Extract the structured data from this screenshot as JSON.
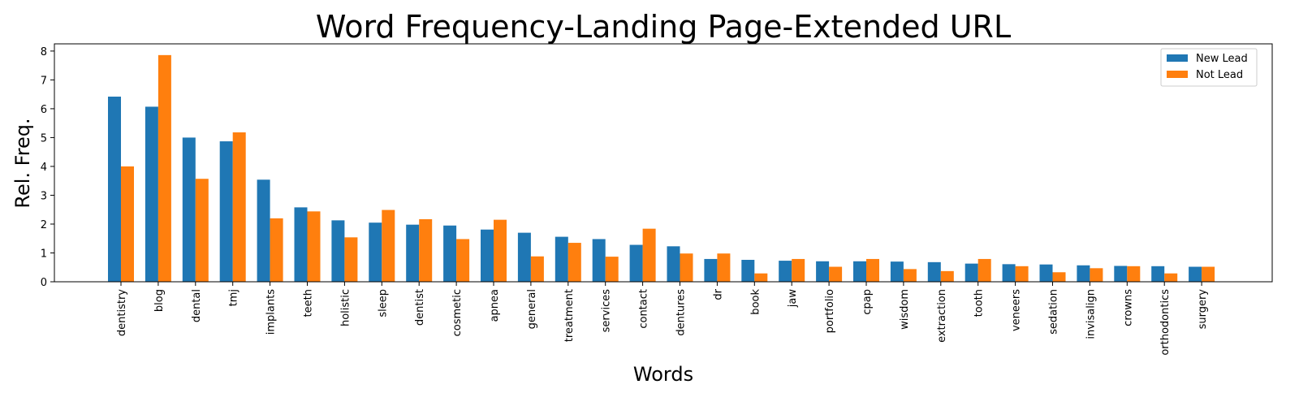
{
  "chart_data": {
    "type": "bar",
    "title": "Word Frequency-Landing Page-Extended URL",
    "xlabel": "Words",
    "ylabel": "Rel. Freq.",
    "ylim": [
      0,
      8.25
    ],
    "yticks": [
      "0",
      "1",
      "2",
      "3",
      "4",
      "5",
      "6",
      "7",
      "8"
    ],
    "legend_position": "top-right",
    "grid": false,
    "categories": [
      "dentistry",
      "blog",
      "dental",
      "tmj",
      "implants",
      "teeth",
      "holistic",
      "sleep",
      "dentist",
      "cosmetic",
      "apnea",
      "general",
      "treatment",
      "services",
      "contact",
      "dentures",
      "dr",
      "book",
      "jaw",
      "portfolio",
      "cpap",
      "wisdom",
      "extraction",
      "tooth",
      "veneers",
      "sedation",
      "invisalign",
      "crowns",
      "orthodontics",
      "surgery"
    ],
    "series": [
      {
        "name": "New Lead",
        "color": "#1f77b4",
        "values": [
          6.42,
          6.07,
          5.0,
          4.87,
          3.54,
          2.58,
          2.13,
          2.05,
          1.98,
          1.95,
          1.81,
          1.7,
          1.56,
          1.48,
          1.28,
          1.23,
          0.79,
          0.76,
          0.73,
          0.71,
          0.71,
          0.7,
          0.68,
          0.63,
          0.61,
          0.6,
          0.57,
          0.55,
          0.54,
          0.52
        ]
      },
      {
        "name": "Not Lead",
        "color": "#ff7f0e",
        "values": [
          4.0,
          7.86,
          3.57,
          5.18,
          2.2,
          2.44,
          1.54,
          2.49,
          2.17,
          1.48,
          2.15,
          0.88,
          1.35,
          0.87,
          1.84,
          0.98,
          0.98,
          0.29,
          0.79,
          0.52,
          0.79,
          0.44,
          0.37,
          0.79,
          0.54,
          0.33,
          0.47,
          0.54,
          0.29,
          0.52
        ]
      }
    ]
  }
}
